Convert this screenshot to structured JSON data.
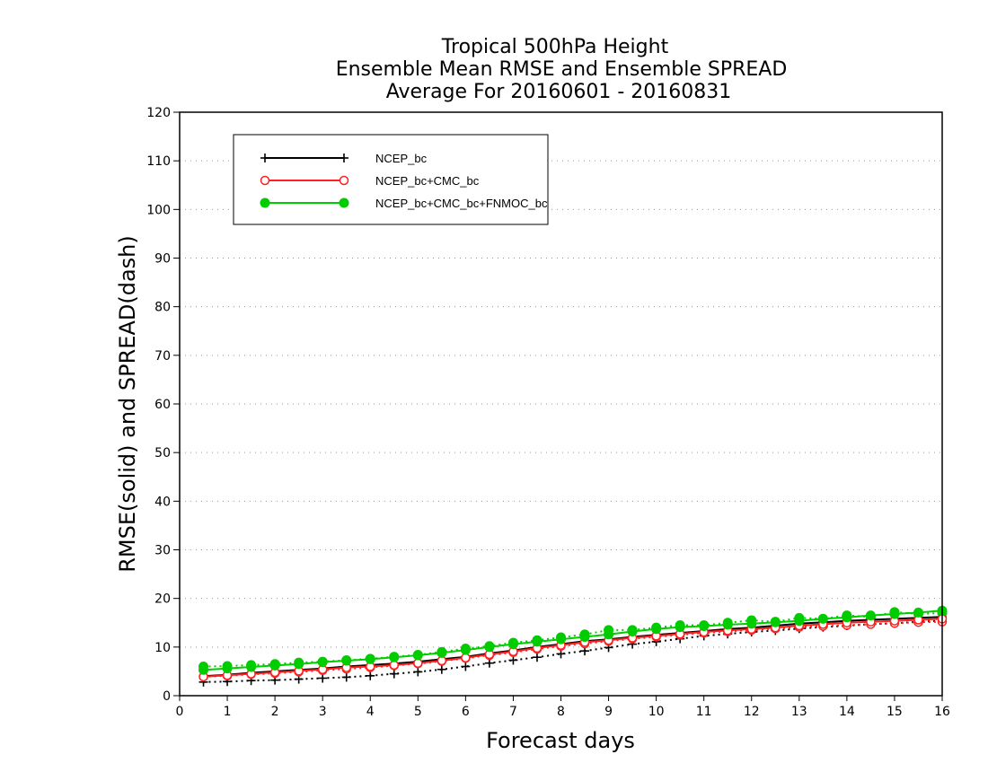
{
  "chart_data": {
    "type": "line",
    "title": [
      "Tropical 500hPa Height",
      "Ensemble Mean RMSE and Ensemble SPREAD",
      "Average For 20160601 - 20160831"
    ],
    "xlabel": "Forecast days",
    "ylabel": "RMSE(solid) and SPREAD(dash)",
    "xlim": [
      0,
      16
    ],
    "ylim": [
      0,
      120
    ],
    "xticks": [
      "0",
      "1",
      "2",
      "3",
      "4",
      "5",
      "6",
      "7",
      "8",
      "9",
      "10",
      "11",
      "12",
      "13",
      "14",
      "15",
      "16"
    ],
    "yticks": [
      "0",
      "10",
      "20",
      "30",
      "40",
      "50",
      "60",
      "70",
      "80",
      "90",
      "100",
      "110",
      "120"
    ],
    "grid": true,
    "legend_position": "top-left",
    "x": [
      0.5,
      1,
      1.5,
      2,
      2.5,
      3,
      3.5,
      4,
      4.5,
      5,
      5.5,
      6,
      6.5,
      7,
      7.5,
      8,
      8.5,
      9,
      9.5,
      10,
      10.5,
      11,
      11.5,
      12,
      12.5,
      13,
      13.5,
      14,
      14.5,
      15,
      15.5,
      16
    ],
    "series": [
      {
        "name": "NCEP_bc",
        "color": "#000000",
        "marker": "plus",
        "rmse": [
          4.0,
          4.3,
          4.7,
          5.0,
          5.3,
          5.6,
          6.0,
          6.3,
          6.6,
          7.0,
          7.5,
          8.0,
          8.7,
          9.3,
          10.0,
          10.6,
          11.2,
          11.6,
          12.1,
          12.5,
          12.9,
          13.3,
          13.7,
          14.0,
          14.4,
          14.8,
          15.1,
          15.4,
          15.6,
          15.8,
          16.0,
          16.2
        ],
        "spread": [
          2.8,
          2.9,
          3.1,
          3.2,
          3.4,
          3.6,
          3.8,
          4.1,
          4.5,
          4.9,
          5.4,
          6.0,
          6.7,
          7.3,
          7.9,
          8.6,
          9.2,
          9.9,
          10.6,
          11.1,
          11.7,
          12.3,
          12.7,
          13.1,
          13.4,
          13.8,
          14.1,
          14.4,
          14.7,
          14.9,
          15.2,
          15.4
        ]
      },
      {
        "name": "NCEP_bc+CMC_bc",
        "color": "#ff2020",
        "marker": "open-circle",
        "rmse": [
          3.9,
          4.2,
          4.5,
          4.8,
          5.1,
          5.4,
          5.8,
          6.0,
          6.3,
          6.7,
          7.2,
          7.8,
          8.5,
          9.1,
          9.8,
          10.4,
          11.0,
          11.4,
          11.9,
          12.3,
          12.7,
          13.1,
          13.4,
          13.7,
          14.0,
          14.4,
          14.7,
          15.0,
          15.2,
          15.4,
          15.6,
          15.8
        ],
        "spread": [
          3.9,
          4.1,
          4.4,
          4.6,
          4.9,
          5.2,
          5.5,
          5.8,
          6.2,
          6.6,
          7.1,
          7.7,
          8.3,
          8.9,
          9.6,
          10.2,
          10.7,
          11.2,
          11.7,
          12.1,
          12.5,
          12.9,
          13.2,
          13.5,
          13.8,
          14.1,
          14.3,
          14.5,
          14.7,
          14.9,
          15.1,
          15.2
        ]
      },
      {
        "name": "NCEP_bc+CMC_bc+FNMOC_bc",
        "color": "#00cc00",
        "marker": "filled-circle",
        "rmse": [
          5.3,
          5.6,
          5.9,
          6.2,
          6.5,
          6.9,
          7.2,
          7.5,
          7.9,
          8.3,
          8.8,
          9.4,
          10.0,
          10.6,
          11.1,
          11.6,
          12.1,
          12.6,
          13.2,
          13.7,
          14.1,
          14.3,
          14.6,
          14.8,
          15.1,
          15.4,
          15.8,
          16.1,
          16.5,
          16.8,
          17.1,
          17.5
        ],
        "spread": [
          6.0,
          6.1,
          6.3,
          6.5,
          6.8,
          7.0,
          7.3,
          7.6,
          8.0,
          8.4,
          9.0,
          9.7,
          10.2,
          10.9,
          11.4,
          12.0,
          12.6,
          13.5,
          13.5,
          14.0,
          14.5,
          14.5,
          15.0,
          15.5,
          15.2,
          16.0,
          15.8,
          16.5,
          16.2,
          17.2,
          16.8,
          17.0
        ]
      }
    ]
  }
}
